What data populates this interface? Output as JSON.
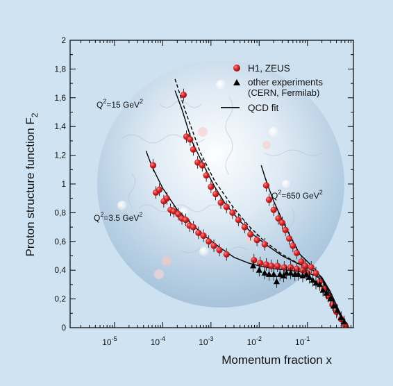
{
  "colors": {
    "background": "#cfe3f2",
    "h1_zeus": "#d21f26",
    "other": "#000000",
    "qcd_fit": "#000000"
  },
  "chart_data": {
    "type": "scatter",
    "title": "",
    "xlabel": "Momentum fraction x",
    "ylabel": "Proton structure function F",
    "ylabel_sub": "2",
    "x_scale": "log",
    "xlim": [
      1.2e-06,
      0.9
    ],
    "ylim": [
      0,
      2
    ],
    "x_ticks": [
      {
        "value": 1e-05,
        "base": "10",
        "exp": "-5"
      },
      {
        "value": 0.0001,
        "base": "10",
        "exp": "-4"
      },
      {
        "value": 0.001,
        "base": "10",
        "exp": "-3"
      },
      {
        "value": 0.01,
        "base": "10",
        "exp": "-2"
      },
      {
        "value": 0.1,
        "base": "10",
        "exp": "-1"
      }
    ],
    "y_ticks": [
      "0",
      "0,2",
      "0,4",
      "0,6",
      "0,8",
      "1",
      "1,2",
      "1,4",
      "1,6",
      "1,8",
      "2"
    ],
    "grid": false,
    "legend": {
      "position": "top-right",
      "entries": [
        {
          "label": "H1, ZEUS",
          "marker": "circle"
        },
        {
          "label": "other experiments",
          "sublabel": "(CERN, Fermilab)",
          "marker": "triangle"
        },
        {
          "label": "QCD fit",
          "marker": "line"
        }
      ]
    },
    "annotations": [
      {
        "base": "Q",
        "sup": "2",
        "text": "=15 GeV",
        "sup2": "2"
      },
      {
        "base": "Q",
        "sup": "2",
        "text": "=3.5 GeV",
        "sup2": "2"
      },
      {
        "base": "Q",
        "sup": "2",
        "text": "=650 GeV",
        "sup2": "2"
      }
    ],
    "series": [
      {
        "name": "H1, ZEUS",
        "marker": "circle",
        "points": [
          [
            6.3e-05,
            1.13
          ],
          [
            7.2e-05,
            0.94
          ],
          [
            8.5e-05,
            0.96
          ],
          [
            0.000105,
            0.88
          ],
          [
            0.000122,
            0.9
          ],
          [
            0.000145,
            0.82
          ],
          [
            0.00017,
            0.81
          ],
          [
            0.00021,
            0.79
          ],
          [
            0.00025,
            0.76
          ],
          [
            0.0003,
            0.75
          ],
          [
            0.00036,
            0.71
          ],
          [
            0.00043,
            0.7
          ],
          [
            0.00055,
            0.66
          ],
          [
            0.0007,
            0.64
          ],
          [
            0.0009,
            0.6
          ],
          [
            0.00115,
            0.57
          ],
          [
            0.0015,
            0.54
          ],
          [
            0.0021,
            0.51
          ],
          [
            0.00027,
            1.62
          ],
          [
            0.00031,
            1.33
          ],
          [
            0.00037,
            1.31
          ],
          [
            0.00043,
            1.24
          ],
          [
            0.00053,
            1.15
          ],
          [
            0.00066,
            1.13
          ],
          [
            0.0008,
            1.06
          ],
          [
            0.001,
            0.98
          ],
          [
            0.00125,
            0.93
          ],
          [
            0.0016,
            0.87
          ],
          [
            0.0021,
            0.84
          ],
          [
            0.0028,
            0.8
          ],
          [
            0.0037,
            0.75
          ],
          [
            0.005,
            0.7
          ],
          [
            0.0066,
            0.65
          ],
          [
            0.009,
            0.61
          ],
          [
            0.013,
            0.58
          ],
          [
            0.0078,
            0.47
          ],
          [
            0.0105,
            0.45
          ],
          [
            0.014,
            0.44
          ],
          [
            0.018,
            0.43
          ],
          [
            0.024,
            0.43
          ],
          [
            0.033,
            0.42
          ],
          [
            0.045,
            0.42
          ],
          [
            0.06,
            0.41
          ],
          [
            0.08,
            0.4
          ],
          [
            0.1,
            0.38
          ],
          [
            0.014,
            0.99
          ],
          [
            0.016,
            0.89
          ],
          [
            0.02,
            0.82
          ],
          [
            0.025,
            0.76
          ],
          [
            0.03,
            0.73
          ],
          [
            0.035,
            0.68
          ],
          [
            0.042,
            0.62
          ],
          [
            0.05,
            0.57
          ],
          [
            0.06,
            0.52
          ],
          [
            0.075,
            0.46
          ],
          [
            0.09,
            0.43
          ],
          [
            0.12,
            0.42
          ],
          [
            0.15,
            0.38
          ],
          [
            0.18,
            0.32
          ],
          [
            0.22,
            0.27
          ],
          [
            0.27,
            0.22
          ],
          [
            0.33,
            0.16
          ],
          [
            0.4,
            0.11
          ],
          [
            0.5,
            0.06
          ],
          [
            0.6,
            0.02
          ]
        ]
      },
      {
        "name": "other experiments",
        "marker": "triangle",
        "points": [
          [
            0.0075,
            0.43
          ],
          [
            0.01,
            0.4
          ],
          [
            0.013,
            0.38
          ],
          [
            0.016,
            0.37
          ],
          [
            0.02,
            0.37
          ],
          [
            0.023,
            0.32
          ],
          [
            0.027,
            0.37
          ],
          [
            0.032,
            0.36
          ],
          [
            0.037,
            0.38
          ],
          [
            0.045,
            0.38
          ],
          [
            0.055,
            0.37
          ],
          [
            0.065,
            0.37
          ],
          [
            0.08,
            0.36
          ],
          [
            0.095,
            0.37
          ],
          [
            0.11,
            0.35
          ],
          [
            0.13,
            0.33
          ],
          [
            0.15,
            0.31
          ],
          [
            0.18,
            0.3
          ],
          [
            0.21,
            0.26
          ],
          [
            0.25,
            0.24
          ],
          [
            0.3,
            0.2
          ],
          [
            0.35,
            0.15
          ],
          [
            0.42,
            0.12
          ],
          [
            0.5,
            0.07
          ],
          [
            0.58,
            0.04
          ]
        ]
      }
    ],
    "fit_curves": [
      {
        "style": "solid",
        "points": [
          [
            4.5e-05,
            1.23
          ],
          [
            6e-05,
            1.12
          ],
          [
            0.0001,
            0.97
          ],
          [
            0.0002,
            0.82
          ],
          [
            0.0004,
            0.72
          ],
          [
            0.0008,
            0.63
          ],
          [
            0.0015,
            0.56
          ],
          [
            0.003,
            0.49
          ],
          [
            0.006,
            0.45
          ],
          [
            0.01,
            0.43
          ],
          [
            0.02,
            0.41
          ],
          [
            0.04,
            0.4
          ],
          [
            0.07,
            0.39
          ],
          [
            0.1,
            0.38
          ],
          [
            0.15,
            0.36
          ],
          [
            0.2,
            0.33
          ],
          [
            0.3,
            0.25
          ],
          [
            0.45,
            0.12
          ],
          [
            0.6,
            0.04
          ],
          [
            0.72,
            0.0
          ]
        ]
      },
      {
        "style": "solid",
        "points": [
          [
            0.00018,
            1.65
          ],
          [
            0.00025,
            1.52
          ],
          [
            0.0004,
            1.3
          ],
          [
            0.0007,
            1.13
          ],
          [
            0.0012,
            0.98
          ],
          [
            0.002,
            0.86
          ],
          [
            0.004,
            0.74
          ],
          [
            0.008,
            0.64
          ],
          [
            0.015,
            0.57
          ],
          [
            0.03,
            0.5
          ],
          [
            0.06,
            0.45
          ],
          [
            0.1,
            0.42
          ],
          [
            0.15,
            0.39
          ],
          [
            0.2,
            0.35
          ],
          [
            0.3,
            0.25
          ],
          [
            0.45,
            0.11
          ],
          [
            0.6,
            0.03
          ],
          [
            0.7,
            0.0
          ]
        ]
      },
      {
        "style": "dashed",
        "points": [
          [
            0.00018,
            1.73
          ],
          [
            0.0003,
            1.5
          ],
          [
            0.0006,
            1.22
          ],
          [
            0.0012,
            1.02
          ],
          [
            0.003,
            0.83
          ],
          [
            0.006,
            0.71
          ],
          [
            0.012,
            0.61
          ],
          [
            0.03,
            0.51
          ],
          [
            0.07,
            0.44
          ],
          [
            0.12,
            0.41
          ],
          [
            0.2,
            0.33
          ],
          [
            0.3,
            0.22
          ],
          [
            0.45,
            0.1
          ],
          [
            0.6,
            0.02
          ]
        ]
      },
      {
        "style": "solid",
        "points": [
          [
            0.011,
            1.13
          ],
          [
            0.014,
            1.02
          ],
          [
            0.02,
            0.88
          ],
          [
            0.03,
            0.75
          ],
          [
            0.045,
            0.63
          ],
          [
            0.07,
            0.51
          ],
          [
            0.1,
            0.46
          ],
          [
            0.15,
            0.4
          ],
          [
            0.2,
            0.34
          ],
          [
            0.3,
            0.23
          ],
          [
            0.45,
            0.1
          ],
          [
            0.6,
            0.02
          ]
        ]
      }
    ]
  }
}
